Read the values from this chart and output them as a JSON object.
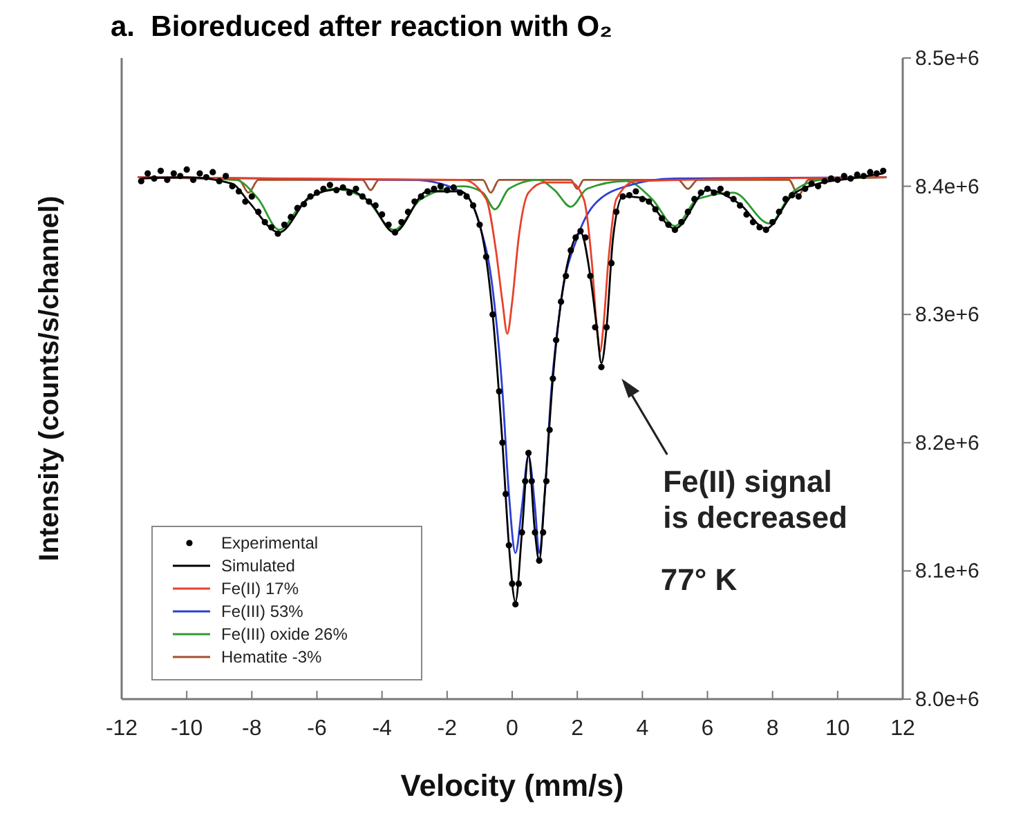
{
  "chart_data": {
    "type": "line",
    "title": "a.  Bioreduced after reaction with O₂",
    "xlabel": "Velocity (mm/s)",
    "ylabel": "Intensity (counts/s/channel)",
    "xlim": [
      -12,
      12
    ],
    "xticks": [
      -12,
      -10,
      -8,
      -6,
      -4,
      -2,
      0,
      2,
      4,
      6,
      8,
      10,
      12
    ],
    "ylim": [
      8000000.0,
      8500000.0
    ],
    "yticks": [
      {
        "value": 8000000.0,
        "label": "8.0e+6"
      },
      {
        "value": 8100000.0,
        "label": "8.1e+6"
      },
      {
        "value": 8200000.0,
        "label": "8.2e+6"
      },
      {
        "value": 8300000.0,
        "label": "8.3e+6"
      },
      {
        "value": 8400000.0,
        "label": "8.4e+6"
      },
      {
        "value": 8500000.0,
        "label": "8.5e+6"
      }
    ],
    "grid": false,
    "legend": "bottom left",
    "annotations": [
      "Fe(II) signal\nis decreased",
      "77° K"
    ],
    "series": [
      {
        "name": "Hematite -3%",
        "color": "#a0522d",
        "x": [
          -11.5,
          -8.4,
          -8.1,
          -7.8,
          -4.6,
          -4.35,
          -4.1,
          -0.9,
          -0.66,
          -0.4,
          1.8,
          2.0,
          2.2,
          5.1,
          5.4,
          5.7,
          8.5,
          8.8,
          9.1,
          11.5
        ],
        "values": [
          8407000.0,
          8405000.0,
          8395000.0,
          8405000.0,
          8405000.0,
          8397000.0,
          8405000.0,
          8405000.0,
          8395000.0,
          8405000.0,
          8405000.0,
          8398000.0,
          8405000.0,
          8405000.0,
          8398000.0,
          8405000.0,
          8405000.0,
          8393000.0,
          8405000.0,
          8407000.0
        ]
      },
      {
        "name": "Fe(III) oxide 26%",
        "color": "#2e9a2e",
        "x": [
          -11.5,
          -8.5,
          -7.8,
          -7.16,
          -6.5,
          -5.5,
          -4.5,
          -3.63,
          -2.8,
          -1.5,
          -0.9,
          -0.53,
          -0.1,
          0.8,
          1.3,
          1.8,
          2.3,
          3.5,
          4.3,
          5.0,
          5.7,
          6.8,
          7.9,
          8.6,
          9.5,
          11.5
        ],
        "values": [
          8407000.0,
          8405000.0,
          8390000.0,
          8366000.0,
          8385000.0,
          8398000.0,
          8390000.0,
          8366000.0,
          8390000.0,
          8400000.0,
          8395000.0,
          8382000.0,
          8398000.0,
          8405000.0,
          8397000.0,
          8384000.0,
          8398000.0,
          8404000.0,
          8390000.0,
          8369000.0,
          8390000.0,
          8395000.0,
          8371000.0,
          8395000.0,
          8405000.0,
          8407000.0
        ]
      },
      {
        "name": "Fe(III) 53%",
        "color": "#2b3fd4",
        "x": [
          -11.5,
          -3,
          -1.5,
          -1,
          -0.6,
          -0.3,
          -0.1,
          0.1,
          0.3,
          0.5,
          0.7,
          0.83,
          1.0,
          1.2,
          1.5,
          2.0,
          2.5,
          3.5,
          5,
          11.5
        ],
        "values": [
          8407000.0,
          8405000.0,
          8395000.0,
          8370000.0,
          8320000.0,
          8240000.0,
          8160000.0,
          8114000.0,
          8150000.0,
          8190000.0,
          8150000.0,
          8114000.0,
          8160000.0,
          8240000.0,
          8310000.0,
          8360000.0,
          8385000.0,
          8400000.0,
          8406000.0,
          8407000.0
        ]
      },
      {
        "name": "Fe(II) 17%",
        "color": "#e8402a",
        "x": [
          -11.5,
          -1.5,
          -0.8,
          -0.5,
          -0.3,
          -0.15,
          0,
          0.2,
          0.5,
          1,
          1.8,
          2.2,
          2.45,
          2.6,
          2.7,
          2.8,
          2.95,
          3.2,
          3.8,
          11.5
        ],
        "values": [
          8407000.0,
          8405000.0,
          8390000.0,
          8350000.0,
          8310000.0,
          8285000.0,
          8310000.0,
          8360000.0,
          8395000.0,
          8403000.0,
          8403000.0,
          8390000.0,
          8340000.0,
          8290000.0,
          8271000.0,
          8290000.0,
          8340000.0,
          8390000.0,
          8404000.0,
          8407000.0
        ]
      },
      {
        "name": "Simulated",
        "color": "#000000",
        "x": [
          -11.4,
          -10,
          -8.6,
          -8.1,
          -7.16,
          -6.2,
          -5.2,
          -4.35,
          -3.63,
          -2.6,
          -1.6,
          -1.0,
          -0.6,
          -0.3,
          -0.1,
          0.1,
          0.3,
          0.5,
          0.7,
          0.83,
          1.0,
          1.25,
          1.5,
          1.8,
          2.1,
          2.4,
          2.6,
          2.74,
          2.9,
          3.1,
          3.4,
          4.0,
          5.0,
          6.0,
          7.0,
          7.8,
          8.6,
          9.4,
          10.4,
          11.4
        ],
        "values": [
          8406000.0,
          8407000.0,
          8402000.0,
          8388000.0,
          8364000.0,
          8392000.0,
          8398000.0,
          8387000.0,
          8364000.0,
          8396000.0,
          8396000.0,
          8370000.0,
          8300000.0,
          8200000.0,
          8120000.0,
          8076000.0,
          8130000.0,
          8190000.0,
          8130000.0,
          8108000.0,
          8160000.0,
          8250000.0,
          8310000.0,
          8350000.0,
          8364000.0,
          8330000.0,
          8290000.0,
          8262000.0,
          8290000.0,
          8360000.0,
          8392000.0,
          8391000.0,
          8367000.0,
          8397000.0,
          8386000.0,
          8367000.0,
          8393000.0,
          8402000.0,
          8406000.0,
          8410000.0
        ]
      },
      {
        "name": "Experimental",
        "type": "scatter",
        "marker": "circle",
        "color": "#000000",
        "x": [
          -11.4,
          -11.2,
          -11.0,
          -10.8,
          -10.6,
          -10.4,
          -10.2,
          -10.0,
          -9.8,
          -9.6,
          -9.4,
          -9.2,
          -9.0,
          -8.8,
          -8.6,
          -8.4,
          -8.2,
          -8.0,
          -7.8,
          -7.6,
          -7.4,
          -7.2,
          -7.0,
          -6.8,
          -6.6,
          -6.4,
          -6.2,
          -6.0,
          -5.8,
          -5.6,
          -5.4,
          -5.2,
          -5.0,
          -4.8,
          -4.6,
          -4.4,
          -4.2,
          -4.0,
          -3.8,
          -3.6,
          -3.4,
          -3.2,
          -3.0,
          -2.8,
          -2.6,
          -2.4,
          -2.2,
          -2.0,
          -1.8,
          -1.6,
          -1.4,
          -1.2,
          -1.0,
          -0.8,
          -0.6,
          -0.4,
          -0.3,
          -0.2,
          -0.1,
          0.0,
          0.1,
          0.2,
          0.3,
          0.4,
          0.5,
          0.6,
          0.7,
          0.83,
          0.95,
          1.05,
          1.15,
          1.25,
          1.35,
          1.5,
          1.65,
          1.8,
          1.95,
          2.1,
          2.25,
          2.4,
          2.55,
          2.74,
          2.9,
          3.05,
          3.2,
          3.4,
          3.6,
          3.8,
          4.0,
          4.2,
          4.4,
          4.6,
          4.8,
          5.0,
          5.2,
          5.4,
          5.6,
          5.8,
          6.0,
          6.2,
          6.4,
          6.6,
          6.8,
          7.0,
          7.2,
          7.4,
          7.6,
          7.8,
          8.0,
          8.2,
          8.4,
          8.6,
          8.8,
          9.0,
          9.2,
          9.4,
          9.6,
          9.8,
          10.0,
          10.2,
          10.4,
          10.6,
          10.8,
          11.0,
          11.2,
          11.4
        ],
        "values": [
          8404000.0,
          8410000.0,
          8406000.0,
          8412000.0,
          8405000.0,
          8410000.0,
          8408000.0,
          8413000.0,
          8405000.0,
          8410000.0,
          8407000.0,
          8411000.0,
          8404000.0,
          8408000.0,
          8400000.0,
          8396000.0,
          8388000.0,
          8392000.0,
          8380000.0,
          8372000.0,
          8368000.0,
          8363000.0,
          8370000.0,
          8376000.0,
          8383000.0,
          8386000.0,
          8392000.0,
          8395000.0,
          8398000.0,
          8401000.0,
          8397000.0,
          8399000.0,
          8395000.0,
          8398000.0,
          8392000.0,
          8388000.0,
          8385000.0,
          8378000.0,
          8370000.0,
          8364000.0,
          8372000.0,
          8380000.0,
          8388000.0,
          8392000.0,
          8396000.0,
          8398000.0,
          8400000.0,
          8397000.0,
          8399000.0,
          8395000.0,
          8392000.0,
          8385000.0,
          8370000.0,
          8345000.0,
          8300000.0,
          8240000.0,
          8200000.0,
          8160000.0,
          8120000.0,
          8090000.0,
          8074000.0,
          8090000.0,
          8130000.0,
          8170000.0,
          8192000.0,
          8170000.0,
          8130000.0,
          8108000.0,
          8130000.0,
          8170000.0,
          8210000.0,
          8250000.0,
          8280000.0,
          8310000.0,
          8330000.0,
          8350000.0,
          8360000.0,
          8365000.0,
          8360000.0,
          8330000.0,
          8290000.0,
          8259000.0,
          8290000.0,
          8340000.0,
          8380000.0,
          8392000.0,
          8393000.0,
          8396000.0,
          8390000.0,
          8388000.0,
          8382000.0,
          8375000.0,
          8370000.0,
          8366000.0,
          8372000.0,
          8380000.0,
          8390000.0,
          8395000.0,
          8398000.0,
          8395000.0,
          8398000.0,
          8394000.0,
          8390000.0,
          8385000.0,
          8378000.0,
          8372000.0,
          8368000.0,
          8366000.0,
          8372000.0,
          8380000.0,
          8390000.0,
          8393000.0,
          8392000.0,
          8398000.0,
          8402000.0,
          8400000.0,
          8404000.0,
          8406000.0,
          8405000.0,
          8408000.0,
          8406000.0,
          8409000.0,
          8408000.0,
          8411000.0,
          8410000.0,
          8412000.0
        ]
      }
    ]
  }
}
